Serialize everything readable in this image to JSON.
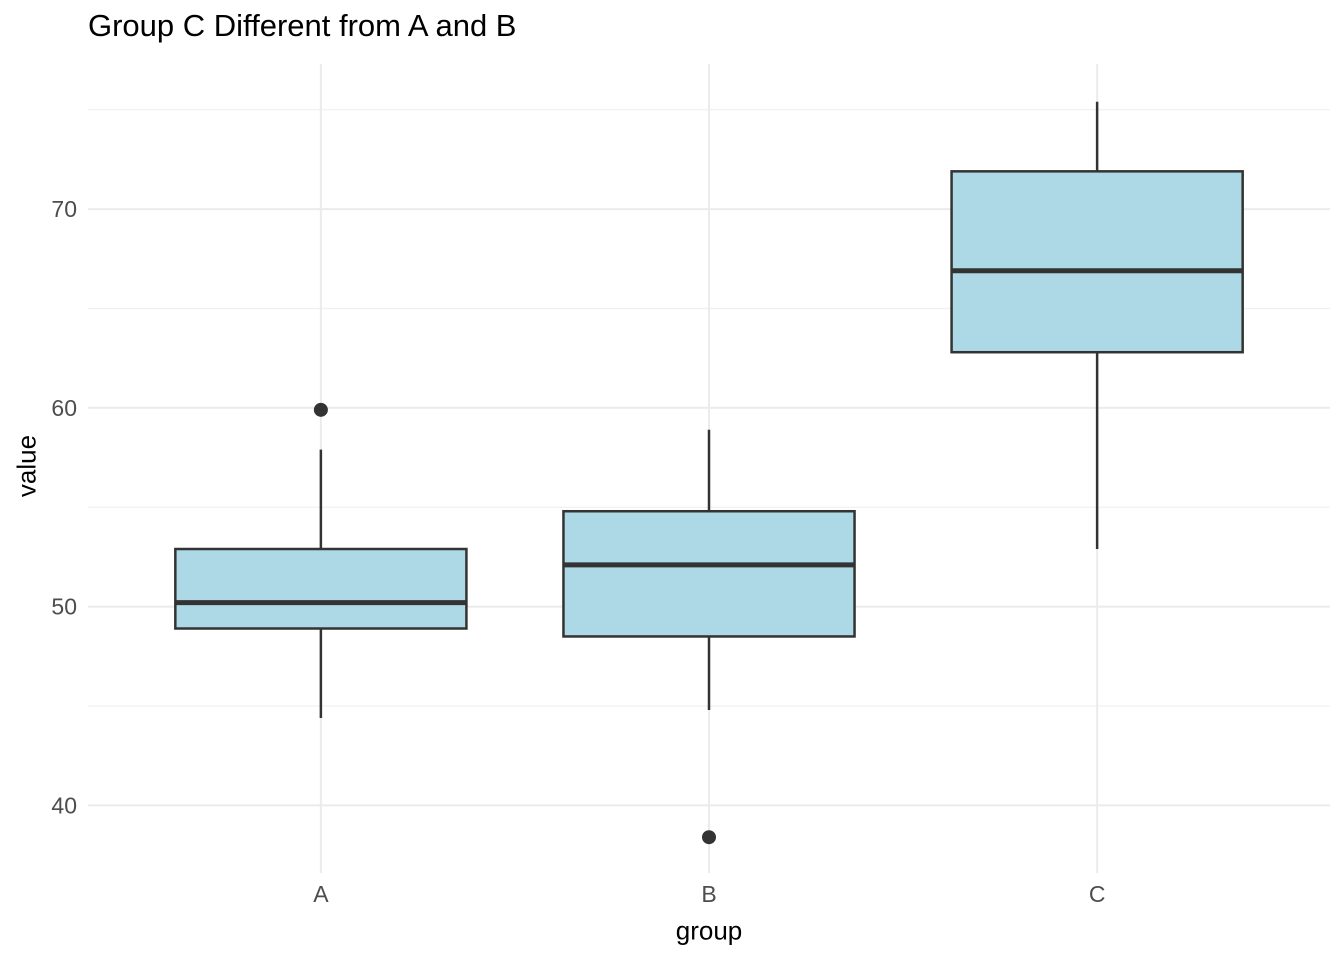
{
  "chart": {
    "title": "Group C Different from A and B",
    "x_axis_label": "group",
    "y_axis_label": "value"
  },
  "chart_data": {
    "type": "boxplot",
    "title": "Group C Different from A and B",
    "xlabel": "group",
    "ylabel": "value",
    "categories": [
      "A",
      "B",
      "C"
    ],
    "series": [
      {
        "name": "A",
        "whisker_low": 44.4,
        "q1": 48.9,
        "median": 50.2,
        "q3": 52.9,
        "whisker_high": 57.9,
        "outliers": [
          59.9
        ]
      },
      {
        "name": "B",
        "whisker_low": 44.8,
        "q1": 48.5,
        "median": 52.1,
        "q3": 54.8,
        "whisker_high": 58.9,
        "outliers": [
          38.4
        ]
      },
      {
        "name": "C",
        "whisker_low": 52.9,
        "q1": 62.8,
        "median": 66.9,
        "q3": 71.9,
        "whisker_high": 75.4,
        "outliers": []
      }
    ],
    "y_ticks": [
      40,
      50,
      60,
      70
    ],
    "y_minor_ticks": [
      45,
      55,
      65,
      75
    ],
    "ylim": [
      36.6,
      77.3
    ],
    "grid": "on",
    "legend": "none",
    "colors": {
      "box_fill": "#ADD8E6",
      "box_stroke": "#333333",
      "median": "#333333",
      "whisker": "#333333",
      "outlier": "#333333",
      "grid_major": "#EBEBEB",
      "grid_minor": "#F0F0F0",
      "tick_label": "#4D4D4D",
      "axis_title": "#000000",
      "background": "#FFFFFF"
    }
  }
}
